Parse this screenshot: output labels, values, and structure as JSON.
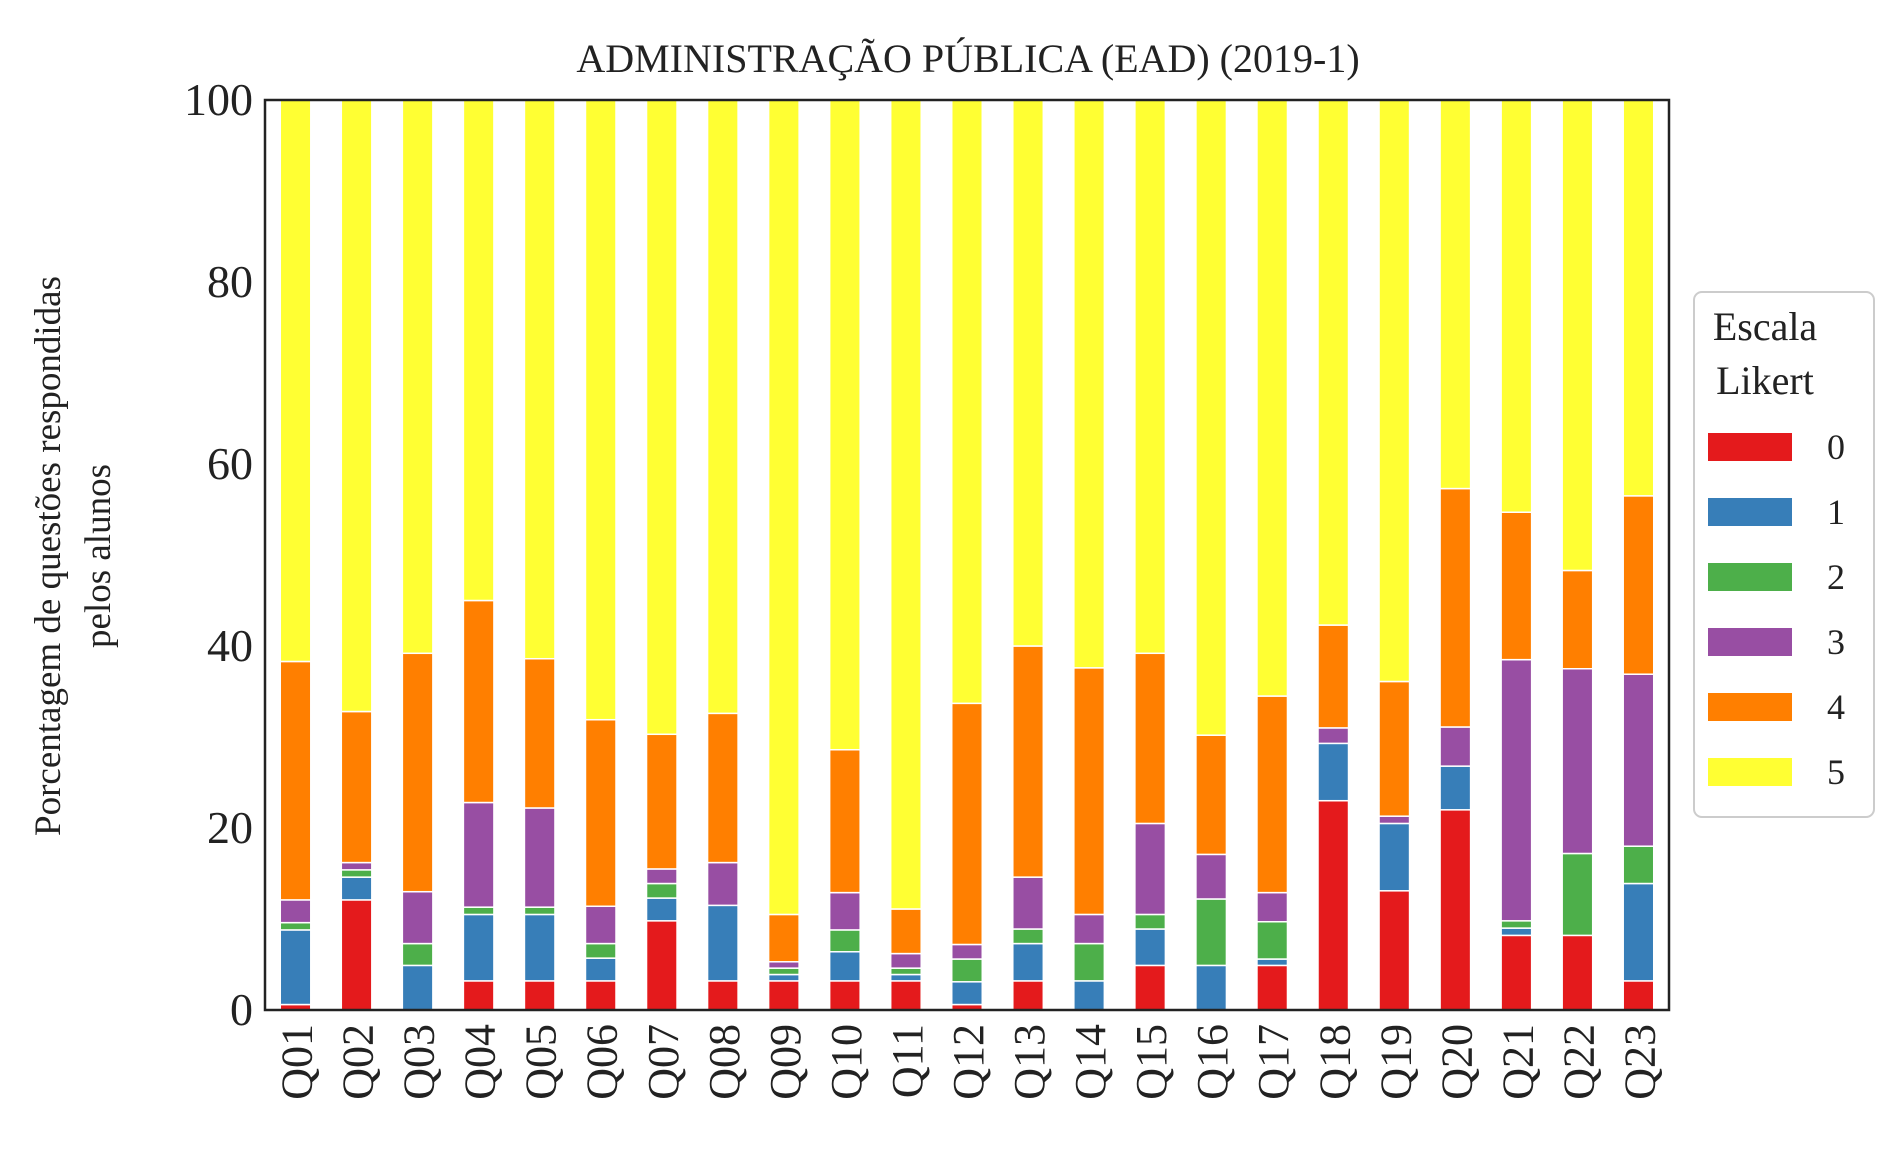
{
  "chart_data": {
    "type": "bar",
    "stacked": true,
    "title": "ADMINISTRAÇÃO PÚBLICA (EAD) (2019-1)",
    "xlabel": "",
    "ylabel_lines": [
      "Porcentagem de questões respondidas",
      "pelos alunos"
    ],
    "ylim": [
      0,
      100
    ],
    "yticks": [
      "0",
      "20",
      "40",
      "60",
      "80",
      "100"
    ],
    "grid": false,
    "legend": {
      "title_lines": [
        "Escala",
        "Likert"
      ],
      "placement": "right"
    },
    "categories": [
      "Q01",
      "Q02",
      "Q03",
      "Q04",
      "Q05",
      "Q06",
      "Q07",
      "Q08",
      "Q09",
      "Q10",
      "Q11",
      "Q12",
      "Q13",
      "Q14",
      "Q15",
      "Q16",
      "Q17",
      "Q18",
      "Q19",
      "Q20",
      "Q21",
      "Q22",
      "Q23"
    ],
    "series": [
      {
        "name": "0",
        "color": "#e41a1c",
        "values": [
          0.6,
          12.1,
          0,
          3.2,
          3.2,
          3.2,
          9.8,
          3.2,
          3.2,
          3.2,
          3.2,
          0.6,
          3.2,
          0,
          4.9,
          0,
          4.9,
          23.0,
          13.1,
          22.0,
          8.2,
          8.2,
          3.2
        ]
      },
      {
        "name": "1",
        "color": "#377eb8",
        "values": [
          8.2,
          2.5,
          4.9,
          7.3,
          7.3,
          2.5,
          2.5,
          8.3,
          0.7,
          3.2,
          0.7,
          2.5,
          4.1,
          3.2,
          4.0,
          4.9,
          0.7,
          6.3,
          7.4,
          4.8,
          0.8,
          0,
          10.7
        ]
      },
      {
        "name": "2",
        "color": "#4daf4a",
        "values": [
          0.8,
          0.8,
          2.4,
          0.8,
          0.8,
          1.6,
          1.6,
          0,
          0.7,
          2.4,
          0.7,
          2.5,
          1.6,
          4.1,
          1.6,
          7.3,
          4.1,
          0,
          0,
          0,
          0.8,
          9.0,
          4.1
        ]
      },
      {
        "name": "3",
        "color": "#984ea3",
        "values": [
          2.5,
          0.8,
          5.7,
          11.5,
          10.9,
          4.1,
          1.6,
          4.7,
          0.7,
          4.1,
          1.6,
          1.6,
          5.7,
          3.2,
          10.0,
          4.9,
          3.2,
          1.7,
          0.8,
          4.3,
          28.7,
          20.3,
          18.9
        ]
      },
      {
        "name": "4",
        "color": "#ff7f00",
        "values": [
          26.2,
          16.6,
          26.2,
          22.2,
          16.4,
          20.5,
          14.8,
          16.4,
          5.2,
          15.7,
          4.9,
          26.5,
          25.4,
          27.1,
          18.7,
          13.1,
          21.6,
          11.3,
          14.8,
          26.2,
          16.2,
          10.8,
          19.6
        ]
      },
      {
        "name": "5",
        "color": "#ffff33",
        "values": [
          61.7,
          67.2,
          60.8,
          55.0,
          61.4,
          68.1,
          69.7,
          67.4,
          89.5,
          71.4,
          88.9,
          66.3,
          60.0,
          62.4,
          60.8,
          69.8,
          65.5,
          57.7,
          63.9,
          42.7,
          45.3,
          51.7,
          43.5
        ]
      }
    ]
  }
}
